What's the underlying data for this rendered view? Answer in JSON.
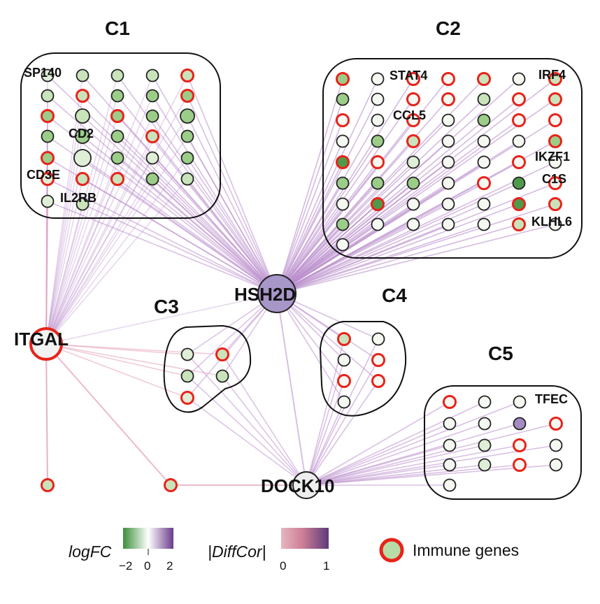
{
  "clusters": [
    {
      "id": "C1",
      "label": "C1"
    },
    {
      "id": "C2",
      "label": "C2"
    },
    {
      "id": "C3",
      "label": "C3"
    },
    {
      "id": "C4",
      "label": "C4"
    },
    {
      "id": "C5",
      "label": "C5"
    }
  ],
  "hubs": [
    {
      "id": "HSH2D",
      "label": "HSH2D",
      "fill": "#a796c8",
      "immune": false
    },
    {
      "id": "ITGAL",
      "label": "ITGAL",
      "fill": "#f2f2f2",
      "immune": true
    },
    {
      "id": "DOCK10",
      "label": "DOCK10",
      "fill": "#eeeeee",
      "immune": false
    }
  ],
  "gene_labels": {
    "c1": [
      "SP140",
      "CD2",
      "CD3E",
      "IL2RB"
    ],
    "c2": [
      "STAT4",
      "CCL5",
      "IRF4",
      "IKZF1",
      "C1S",
      "KLHL6"
    ],
    "c5": [
      "TFEC"
    ]
  },
  "legend": {
    "logfc_label": "logFC",
    "logfc_ticks": [
      "−2",
      "0",
      "2"
    ],
    "logfc_colors": [
      "#3a8f3a",
      "#ffffff",
      "#6b3b8c"
    ],
    "diffcor_label": "|DiffCor|",
    "diffcor_ticks": [
      "0",
      "1"
    ],
    "diffcor_colors": [
      "#e7b6c0",
      "#cc7f95",
      "#5d3a7a"
    ],
    "immune_label": "Immune genes",
    "immune_ring_color": "#e8231a",
    "immune_fill": "#b8dca8"
  },
  "colors": {
    "edge_purple": "#b98ccc",
    "edge_pink": "#e6a9c0",
    "node_border": "#222222",
    "immune_border": "#e8231a"
  }
}
